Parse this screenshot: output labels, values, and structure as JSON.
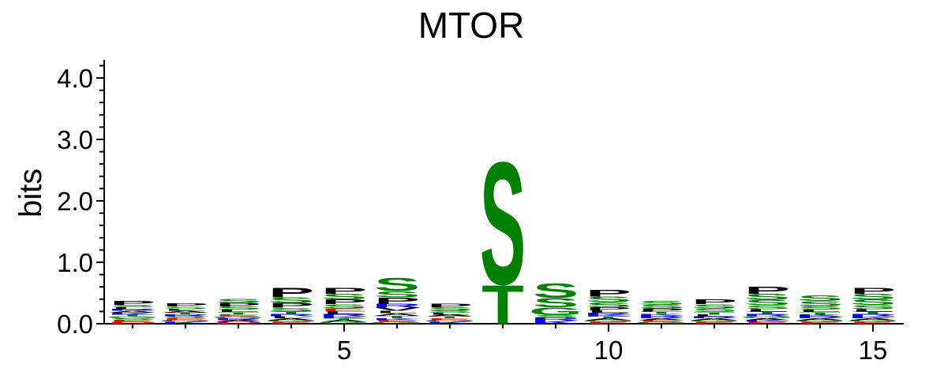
{
  "chart_data": {
    "type": "sequence-logo",
    "title": "MTOR",
    "ylabel": "bits",
    "xlabel": "",
    "ylim": [
      0,
      4.3
    ],
    "yticks": [
      0.0,
      1.0,
      2.0,
      3.0,
      4.0
    ],
    "ytick_labels": [
      "0.0",
      "1.0",
      "2.0",
      "3.0",
      "4.0"
    ],
    "xticks": [
      5,
      10,
      15
    ],
    "xtick_labels": [
      "5",
      "10",
      "15"
    ],
    "colors": {
      "S": "#008000",
      "T": "#008000",
      "G": "#008000",
      "Y": "#008000",
      "C": "#008000",
      "P": "#000000",
      "A": "#000000",
      "V": "#000000",
      "L": "#000000",
      "I": "#000000",
      "M": "#000000",
      "F": "#000000",
      "W": "#000000",
      "K": "#0000ff",
      "R": "#0000ff",
      "H": "#0000ff",
      "D": "#ff0000",
      "E": "#ff0000",
      "N": "#800080",
      "Q": "#800080"
    },
    "positions": [
      {
        "pos": 1,
        "letters": [
          [
            "D",
            0.03
          ],
          [
            "E",
            0.03
          ],
          [
            "S",
            0.03
          ],
          [
            "G",
            0.03
          ],
          [
            "T",
            0.03
          ],
          [
            "K",
            0.03
          ],
          [
            "A",
            0.03
          ],
          [
            "R",
            0.03
          ],
          [
            "L",
            0.03
          ],
          [
            "S",
            0.04
          ],
          [
            "P",
            0.07
          ]
        ]
      },
      {
        "pos": 2,
        "letters": [
          [
            "K",
            0.03
          ],
          [
            "G",
            0.03
          ],
          [
            "E",
            0.03
          ],
          [
            "S",
            0.03
          ],
          [
            "R",
            0.03
          ],
          [
            "T",
            0.03
          ],
          [
            "A",
            0.03
          ],
          [
            "L",
            0.03
          ],
          [
            "S",
            0.04
          ],
          [
            "P",
            0.05
          ]
        ]
      },
      {
        "pos": 3,
        "letters": [
          [
            "D",
            0.03
          ],
          [
            "A",
            0.03
          ],
          [
            "R",
            0.03
          ],
          [
            "G",
            0.03
          ],
          [
            "E",
            0.03
          ],
          [
            "T",
            0.04
          ],
          [
            "L",
            0.04
          ],
          [
            "S",
            0.05
          ],
          [
            "P",
            0.06
          ],
          [
            "S",
            0.07
          ]
        ]
      },
      {
        "pos": 4,
        "letters": [
          [
            "E",
            0.03
          ],
          [
            "G",
            0.03
          ],
          [
            "A",
            0.03
          ],
          [
            "L",
            0.03
          ],
          [
            "R",
            0.04
          ],
          [
            "T",
            0.04
          ],
          [
            "S",
            0.06
          ],
          [
            "P",
            0.08
          ],
          [
            "S",
            0.09
          ],
          [
            "P",
            0.16
          ]
        ]
      },
      {
        "pos": 5,
        "letters": [
          [
            "G",
            0.03
          ],
          [
            "A",
            0.03
          ],
          [
            "T",
            0.03
          ],
          [
            "K",
            0.03
          ],
          [
            "R",
            0.04
          ],
          [
            "L",
            0.04
          ],
          [
            "E",
            0.05
          ],
          [
            "S",
            0.07
          ],
          [
            "P",
            0.08
          ],
          [
            "S",
            0.09
          ],
          [
            "P",
            0.1
          ]
        ]
      },
      {
        "pos": 6,
        "letters": [
          [
            "G",
            0.03
          ],
          [
            "E",
            0.03
          ],
          [
            "K",
            0.03
          ],
          [
            "T",
            0.04
          ],
          [
            "A",
            0.04
          ],
          [
            "L",
            0.04
          ],
          [
            "V",
            0.05
          ],
          [
            "R",
            0.07
          ],
          [
            "P",
            0.1
          ],
          [
            "S",
            0.1
          ],
          [
            "S",
            0.22
          ]
        ]
      },
      {
        "pos": 7,
        "letters": [
          [
            "K",
            0.03
          ],
          [
            "G",
            0.03
          ],
          [
            "E",
            0.03
          ],
          [
            "T",
            0.03
          ],
          [
            "A",
            0.03
          ],
          [
            "L",
            0.03
          ],
          [
            "S",
            0.04
          ],
          [
            "S",
            0.05
          ],
          [
            "P",
            0.06
          ]
        ]
      },
      {
        "pos": 8,
        "letters": [
          [
            "T",
            0.65
          ],
          [
            "S",
            2.05
          ]
        ]
      },
      {
        "pos": 9,
        "letters": [
          [
            "K",
            0.05
          ],
          [
            "R",
            0.05
          ],
          [
            "S",
            0.04
          ],
          [
            "G",
            0.13
          ],
          [
            "S",
            0.15
          ],
          [
            "S",
            0.24
          ]
        ]
      },
      {
        "pos": 10,
        "letters": [
          [
            "E",
            0.03
          ],
          [
            "G",
            0.03
          ],
          [
            "A",
            0.03
          ],
          [
            "T",
            0.03
          ],
          [
            "K",
            0.03
          ],
          [
            "R",
            0.03
          ],
          [
            "L",
            0.04
          ],
          [
            "P",
            0.05
          ],
          [
            "S",
            0.08
          ],
          [
            "S",
            0.09
          ],
          [
            "P",
            0.11
          ]
        ]
      },
      {
        "pos": 11,
        "letters": [
          [
            "G",
            0.03
          ],
          [
            "E",
            0.03
          ],
          [
            "A",
            0.03
          ],
          [
            "R",
            0.04
          ],
          [
            "K",
            0.03
          ],
          [
            "T",
            0.04
          ],
          [
            "P",
            0.05
          ],
          [
            "S",
            0.06
          ],
          [
            "S",
            0.07
          ]
        ]
      },
      {
        "pos": 12,
        "letters": [
          [
            "E",
            0.03
          ],
          [
            "G",
            0.03
          ],
          [
            "A",
            0.03
          ],
          [
            "R",
            0.03
          ],
          [
            "L",
            0.03
          ],
          [
            "T",
            0.04
          ],
          [
            "S",
            0.06
          ],
          [
            "S",
            0.07
          ],
          [
            "P",
            0.08
          ]
        ]
      },
      {
        "pos": 13,
        "letters": [
          [
            "E",
            0.03
          ],
          [
            "K",
            0.03
          ],
          [
            "A",
            0.03
          ],
          [
            "G",
            0.03
          ],
          [
            "R",
            0.04
          ],
          [
            "T",
            0.04
          ],
          [
            "L",
            0.04
          ],
          [
            "S",
            0.06
          ],
          [
            "S",
            0.09
          ],
          [
            "S",
            0.1
          ],
          [
            "P",
            0.12
          ]
        ]
      },
      {
        "pos": 14,
        "letters": [
          [
            "E",
            0.03
          ],
          [
            "G",
            0.03
          ],
          [
            "A",
            0.03
          ],
          [
            "R",
            0.03
          ],
          [
            "K",
            0.03
          ],
          [
            "T",
            0.04
          ],
          [
            "L",
            0.04
          ],
          [
            "S",
            0.06
          ],
          [
            "S",
            0.08
          ],
          [
            "S",
            0.09
          ]
        ]
      },
      {
        "pos": 15,
        "letters": [
          [
            "E",
            0.03
          ],
          [
            "G",
            0.03
          ],
          [
            "A",
            0.03
          ],
          [
            "K",
            0.03
          ],
          [
            "R",
            0.04
          ],
          [
            "T",
            0.04
          ],
          [
            "L",
            0.04
          ],
          [
            "S",
            0.07
          ],
          [
            "S",
            0.09
          ],
          [
            "S",
            0.09
          ],
          [
            "P",
            0.1
          ]
        ]
      }
    ]
  }
}
